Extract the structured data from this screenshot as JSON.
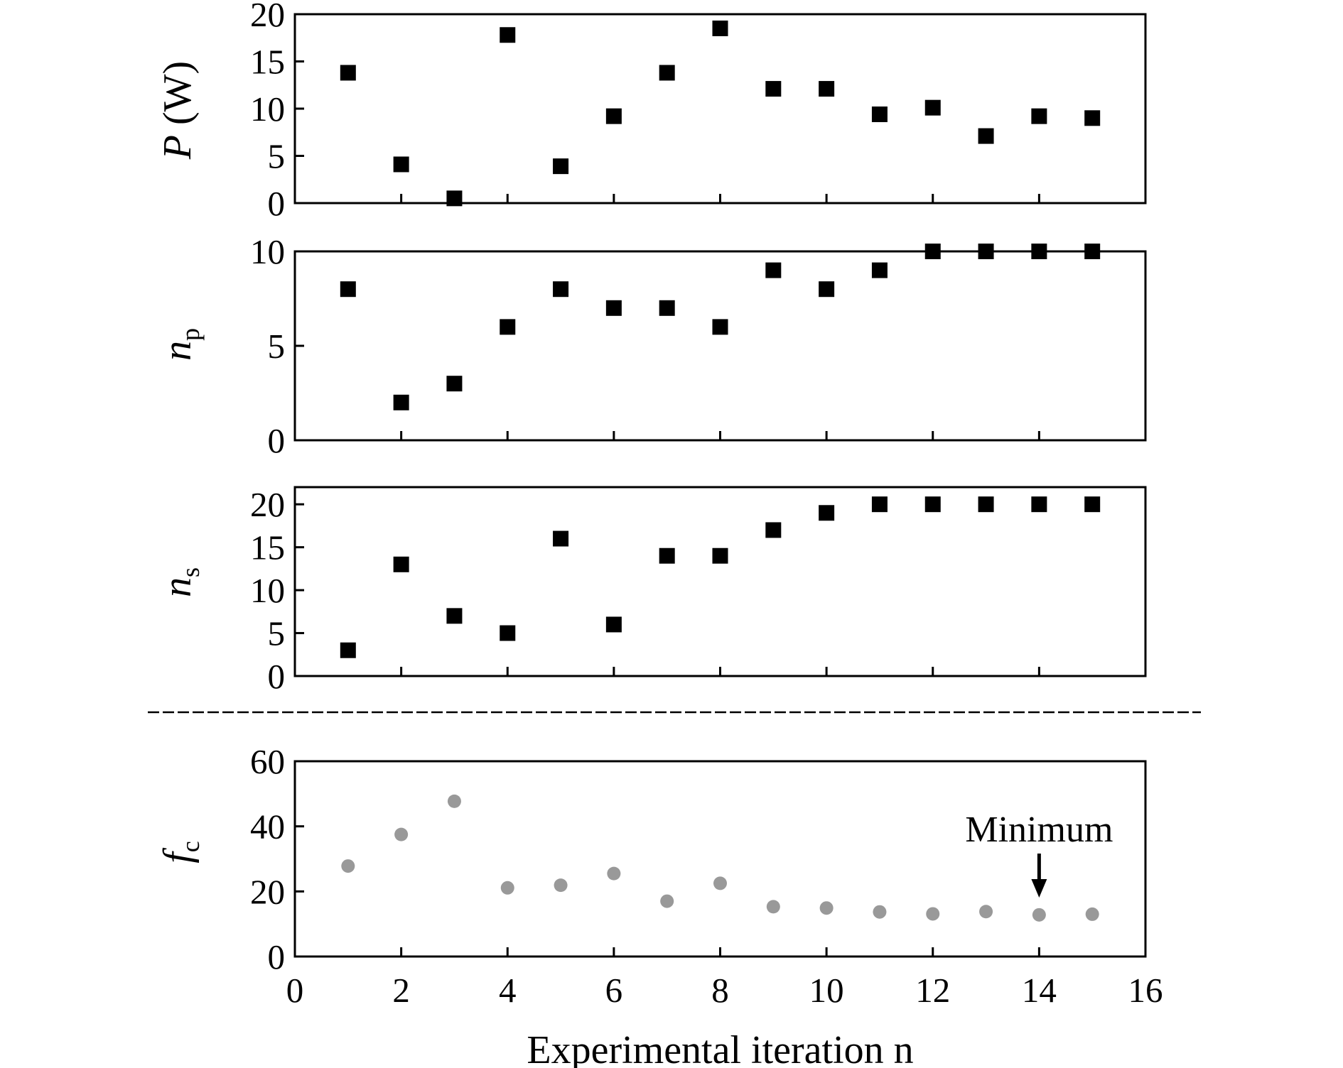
{
  "chart_data": [
    {
      "type": "scatter",
      "ylabel": {
        "main": "P",
        "rest": " (W)"
      },
      "ylim": [
        0,
        20
      ],
      "yticks": [
        0,
        5,
        10,
        15,
        20
      ],
      "xlim": [
        0,
        16
      ],
      "marker": "square",
      "color": "#000000",
      "x": [
        1,
        2,
        3,
        4,
        5,
        6,
        7,
        8,
        9,
        10,
        11,
        12,
        13,
        14,
        15
      ],
      "y": [
        13.8,
        4.1,
        0.5,
        17.8,
        3.9,
        9.2,
        13.8,
        18.5,
        12.1,
        12.1,
        9.4,
        10.1,
        7.1,
        9.2,
        9.0
      ]
    },
    {
      "type": "scatter",
      "ylabel": {
        "main": "n",
        "sub": "p"
      },
      "ylim": [
        0,
        10
      ],
      "yticks": [
        0,
        5,
        10
      ],
      "xlim": [
        0,
        16
      ],
      "marker": "square",
      "color": "#000000",
      "x": [
        1,
        2,
        3,
        4,
        5,
        6,
        7,
        8,
        9,
        10,
        11,
        12,
        13,
        14,
        15
      ],
      "y": [
        8,
        2,
        3,
        6,
        8,
        7,
        7,
        6,
        9,
        8,
        9,
        10,
        10,
        10,
        10
      ]
    },
    {
      "type": "scatter",
      "ylabel": {
        "main": "n",
        "sub": "s"
      },
      "ylim": [
        0,
        22
      ],
      "yticks": [
        0,
        5,
        10,
        15,
        20
      ],
      "xlim": [
        0,
        16
      ],
      "marker": "square",
      "color": "#000000",
      "x": [
        1,
        2,
        3,
        4,
        5,
        6,
        7,
        8,
        9,
        10,
        11,
        12,
        13,
        14,
        15
      ],
      "y": [
        3,
        13,
        7,
        5,
        16,
        6,
        14,
        14,
        17,
        19,
        20,
        20,
        20,
        20,
        20
      ]
    },
    {
      "type": "scatter",
      "ylabel": {
        "main": "f",
        "sub": "c"
      },
      "ylim": [
        0,
        60
      ],
      "yticks": [
        0,
        20,
        40,
        60
      ],
      "xlim": [
        0,
        16
      ],
      "xticks": [
        0,
        2,
        4,
        6,
        8,
        10,
        12,
        14,
        16
      ],
      "xlabel": "Experimental iteration n",
      "marker": "circle",
      "color": "#999999",
      "x": [
        1,
        2,
        3,
        4,
        5,
        6,
        7,
        8,
        9,
        10,
        11,
        12,
        13,
        14,
        15
      ],
      "y": [
        27.8,
        37.5,
        47.7,
        21.1,
        21.9,
        25.5,
        17.0,
        22.5,
        15.3,
        14.9,
        13.7,
        13.1,
        13.8,
        12.8,
        13.0
      ],
      "annotation": {
        "text": "Minimum",
        "x": 14
      }
    }
  ]
}
